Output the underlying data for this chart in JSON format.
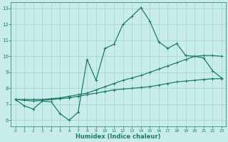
{
  "xlabel": "Humidex (Indice chaleur)",
  "background_color": "#c8ecea",
  "grid_color": "#a8d8d0",
  "line_color": "#1e7a6e",
  "xlim": [
    -0.5,
    23.5
  ],
  "ylim": [
    5.6,
    13.4
  ],
  "yticks": [
    6,
    7,
    8,
    9,
    10,
    11,
    12,
    13
  ],
  "xticks": [
    0,
    1,
    2,
    3,
    4,
    5,
    6,
    7,
    8,
    9,
    10,
    11,
    12,
    13,
    14,
    15,
    16,
    17,
    18,
    19,
    20,
    21,
    22,
    23
  ],
  "line1_x": [
    0,
    1,
    2,
    3,
    4,
    5,
    6,
    7,
    8,
    9,
    10,
    11,
    12,
    13,
    14,
    15,
    16,
    17,
    18,
    19,
    20,
    21,
    22,
    23
  ],
  "line1_y": [
    7.3,
    6.9,
    6.7,
    7.2,
    7.15,
    6.4,
    6.0,
    6.5,
    9.8,
    8.5,
    10.5,
    10.75,
    12.0,
    12.5,
    13.05,
    12.2,
    10.9,
    10.5,
    10.8,
    10.05,
    10.0,
    9.9,
    9.1,
    8.65
  ],
  "line2_x": [
    0,
    1,
    2,
    3,
    4,
    5,
    6,
    7,
    8,
    9,
    10,
    11,
    12,
    13,
    14,
    15,
    16,
    17,
    18,
    19,
    20,
    21,
    22,
    23
  ],
  "line2_y": [
    7.3,
    7.3,
    7.3,
    7.3,
    7.35,
    7.4,
    7.5,
    7.6,
    7.7,
    7.9,
    8.1,
    8.3,
    8.5,
    8.65,
    8.8,
    9.0,
    9.2,
    9.4,
    9.6,
    9.8,
    10.0,
    10.05,
    10.05,
    10.0
  ],
  "line3_x": [
    0,
    1,
    2,
    3,
    4,
    5,
    6,
    7,
    8,
    9,
    10,
    11,
    12,
    13,
    14,
    15,
    16,
    17,
    18,
    19,
    20,
    21,
    22,
    23
  ],
  "line3_y": [
    7.3,
    7.25,
    7.2,
    7.25,
    7.3,
    7.35,
    7.4,
    7.5,
    7.6,
    7.7,
    7.8,
    7.9,
    7.95,
    8.0,
    8.05,
    8.1,
    8.2,
    8.3,
    8.4,
    8.45,
    8.5,
    8.55,
    8.6,
    8.6
  ]
}
